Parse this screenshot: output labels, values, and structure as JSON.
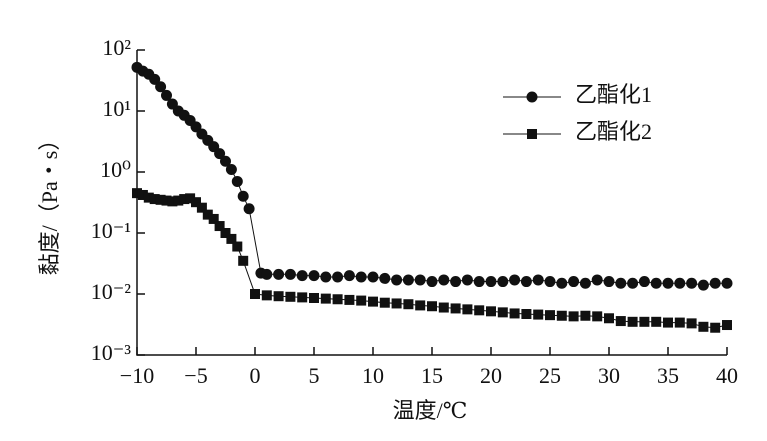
{
  "chart_data": {
    "type": "line",
    "x_label": "温度/℃",
    "y_label": "黏度/（Pa・s）",
    "xlim": [
      -10,
      40
    ],
    "xticks": [
      {
        "value": -10,
        "label": "−10"
      },
      {
        "value": -5,
        "label": "−5"
      },
      0,
      5,
      10,
      15,
      20,
      25,
      30,
      35,
      40
    ],
    "ylim": [
      0.001,
      100
    ],
    "yscale": "log",
    "yticks": [
      {
        "value": 0.001,
        "label": "10⁻³"
      },
      {
        "value": 0.01,
        "label": "10⁻²"
      },
      {
        "value": 0.1,
        "label": "10⁻¹"
      },
      {
        "value": 1,
        "label": "10⁰"
      },
      {
        "value": 10,
        "label": "10¹"
      },
      {
        "value": 100,
        "label": "10²"
      }
    ],
    "legend": "upper right",
    "series": [
      {
        "name": "乙酯化1",
        "color": "#111111",
        "marker": "circle",
        "x": [
          -10,
          -9.5,
          -9,
          -8.5,
          -8,
          -7.5,
          -7,
          -6.5,
          -6,
          -5.5,
          -5,
          -4.5,
          -4,
          -3.5,
          -3,
          -2.5,
          -2,
          -1.5,
          -1,
          -0.5,
          0.5,
          1,
          2,
          3,
          4,
          5,
          6,
          7,
          8,
          9,
          10,
          11,
          12,
          13,
          14,
          15,
          16,
          17,
          18,
          19,
          20,
          21,
          22,
          23,
          24,
          25,
          26,
          27,
          28,
          29,
          30,
          31,
          32,
          33,
          34,
          35,
          36,
          37,
          38,
          39,
          40
        ],
        "values": [
          52,
          45,
          40,
          33,
          25,
          18,
          13,
          10,
          8.5,
          7,
          5.5,
          4.2,
          3.3,
          2.6,
          2,
          1.5,
          1.1,
          0.7,
          0.4,
          0.25,
          0.022,
          0.021,
          0.021,
          0.021,
          0.02,
          0.02,
          0.019,
          0.019,
          0.02,
          0.019,
          0.019,
          0.018,
          0.017,
          0.017,
          0.017,
          0.016,
          0.017,
          0.016,
          0.017,
          0.016,
          0.016,
          0.016,
          0.017,
          0.016,
          0.017,
          0.016,
          0.015,
          0.016,
          0.015,
          0.017,
          0.016,
          0.015,
          0.015,
          0.016,
          0.015,
          0.015,
          0.015,
          0.015,
          0.014,
          0.015,
          0.015
        ]
      },
      {
        "name": "乙酯化2",
        "color": "#111111",
        "marker": "square",
        "x": [
          -10,
          -9.5,
          -9,
          -8.5,
          -8,
          -7.5,
          -7,
          -6.5,
          -6,
          -5.5,
          -5,
          -4.5,
          -4,
          -3.5,
          -3,
          -2.5,
          -2,
          -1.5,
          -1,
          0,
          1,
          2,
          3,
          4,
          5,
          6,
          7,
          8,
          9,
          10,
          11,
          12,
          13,
          14,
          15,
          16,
          17,
          18,
          19,
          20,
          21,
          22,
          23,
          24,
          25,
          26,
          27,
          28,
          29,
          30,
          31,
          32,
          33,
          34,
          35,
          36,
          37,
          38,
          39,
          40
        ],
        "values": [
          0.45,
          0.42,
          0.38,
          0.36,
          0.35,
          0.34,
          0.33,
          0.34,
          0.36,
          0.37,
          0.32,
          0.26,
          0.2,
          0.17,
          0.13,
          0.1,
          0.08,
          0.06,
          0.035,
          0.01,
          0.0095,
          0.0092,
          0.009,
          0.0088,
          0.0086,
          0.0084,
          0.0082,
          0.008,
          0.0078,
          0.0075,
          0.0072,
          0.007,
          0.0068,
          0.0065,
          0.0063,
          0.006,
          0.0058,
          0.0056,
          0.0054,
          0.0052,
          0.005,
          0.0048,
          0.0047,
          0.0046,
          0.0045,
          0.0044,
          0.0043,
          0.0044,
          0.0043,
          0.004,
          0.0036,
          0.0035,
          0.0035,
          0.0035,
          0.0034,
          0.0034,
          0.0033,
          0.0029,
          0.0028,
          0.0031
        ]
      }
    ]
  }
}
